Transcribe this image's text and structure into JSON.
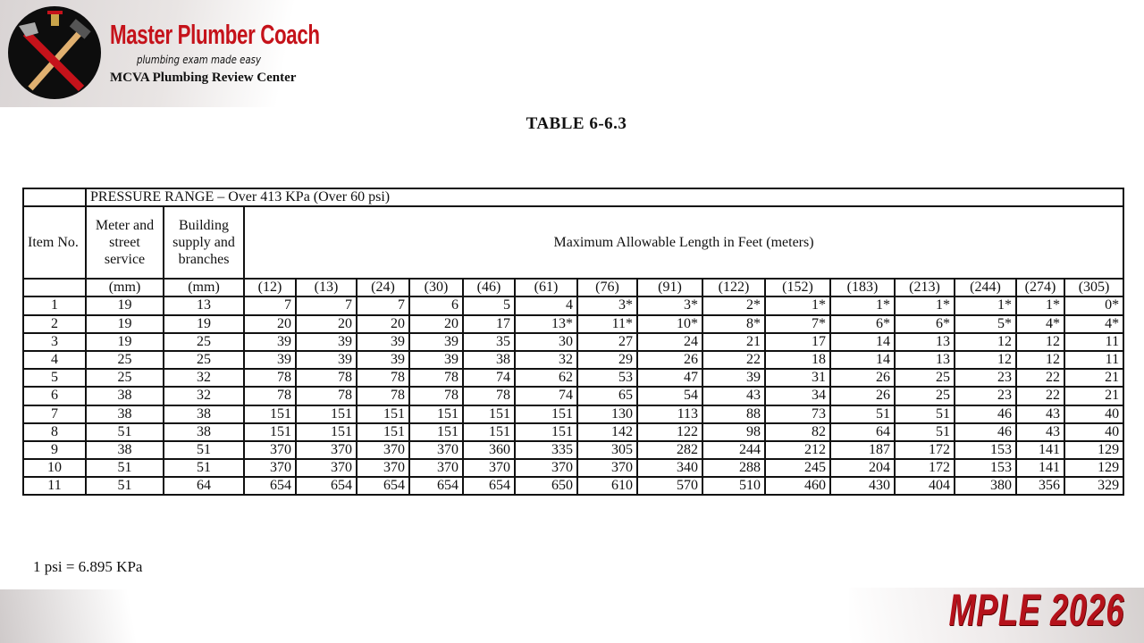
{
  "branding": {
    "name": "Master Plumber Coach",
    "tagline": "plumbing exam made easy",
    "center": "MCVA Plumbing Review Center",
    "badge": "MPLE 2026",
    "accent": "#c5121a"
  },
  "document": {
    "title": "TABLE 6-6.3",
    "pressure_range": "PRESSURE RANGE – Over 413 KPa (Over 60 psi)",
    "headers": {
      "item": "Item No.",
      "meter": "Meter and street service",
      "building": "Building supply and branches",
      "max_length": "Maximum Allowable Length in Feet (meters)"
    },
    "units": [
      "(mm)",
      "(mm)",
      "(12)",
      "(13)",
      "(24)",
      "(30)",
      "(46)",
      "(61)",
      "(76)",
      "(91)",
      "(122)",
      "(152)",
      "(183)",
      "(213)",
      "(244)",
      "(274)",
      "(305)"
    ],
    "rows": [
      [
        "1",
        "19",
        "13",
        "7",
        "7",
        "7",
        "6",
        "5",
        "4",
        "3*",
        "3*",
        "2*",
        "1*",
        "1*",
        "1*",
        "1*",
        "1*",
        "0*"
      ],
      [
        "2",
        "19",
        "19",
        "20",
        "20",
        "20",
        "20",
        "17",
        "13*",
        "11*",
        "10*",
        "8*",
        "7*",
        "6*",
        "6*",
        "5*",
        "4*",
        "4*"
      ],
      [
        "3",
        "19",
        "25",
        "39",
        "39",
        "39",
        "39",
        "35",
        "30",
        "27",
        "24",
        "21",
        "17",
        "14",
        "13",
        "12",
        "12",
        "11"
      ],
      [
        "4",
        "25",
        "25",
        "39",
        "39",
        "39",
        "39",
        "38",
        "32",
        "29",
        "26",
        "22",
        "18",
        "14",
        "13",
        "12",
        "12",
        "11"
      ],
      [
        "5",
        "25",
        "32",
        "78",
        "78",
        "78",
        "78",
        "74",
        "62",
        "53",
        "47",
        "39",
        "31",
        "26",
        "25",
        "23",
        "22",
        "21"
      ],
      [
        "6",
        "38",
        "32",
        "78",
        "78",
        "78",
        "78",
        "78",
        "74",
        "65",
        "54",
        "43",
        "34",
        "26",
        "25",
        "23",
        "22",
        "21"
      ],
      [
        "7",
        "38",
        "38",
        "151",
        "151",
        "151",
        "151",
        "151",
        "151",
        "130",
        "113",
        "88",
        "73",
        "51",
        "51",
        "46",
        "43",
        "40"
      ],
      [
        "8",
        "51",
        "38",
        "151",
        "151",
        "151",
        "151",
        "151",
        "151",
        "142",
        "122",
        "98",
        "82",
        "64",
        "51",
        "46",
        "43",
        "40"
      ],
      [
        "9",
        "38",
        "51",
        "370",
        "370",
        "370",
        "370",
        "360",
        "335",
        "305",
        "282",
        "244",
        "212",
        "187",
        "172",
        "153",
        "141",
        "129"
      ],
      [
        "10",
        "51",
        "51",
        "370",
        "370",
        "370",
        "370",
        "370",
        "370",
        "370",
        "340",
        "288",
        "245",
        "204",
        "172",
        "153",
        "141",
        "129"
      ],
      [
        "11",
        "51",
        "64",
        "654",
        "654",
        "654",
        "654",
        "654",
        "650",
        "610",
        "570",
        "510",
        "460",
        "430",
        "404",
        "380",
        "356",
        "329"
      ]
    ],
    "note": "1 psi = 6.895 KPa"
  }
}
